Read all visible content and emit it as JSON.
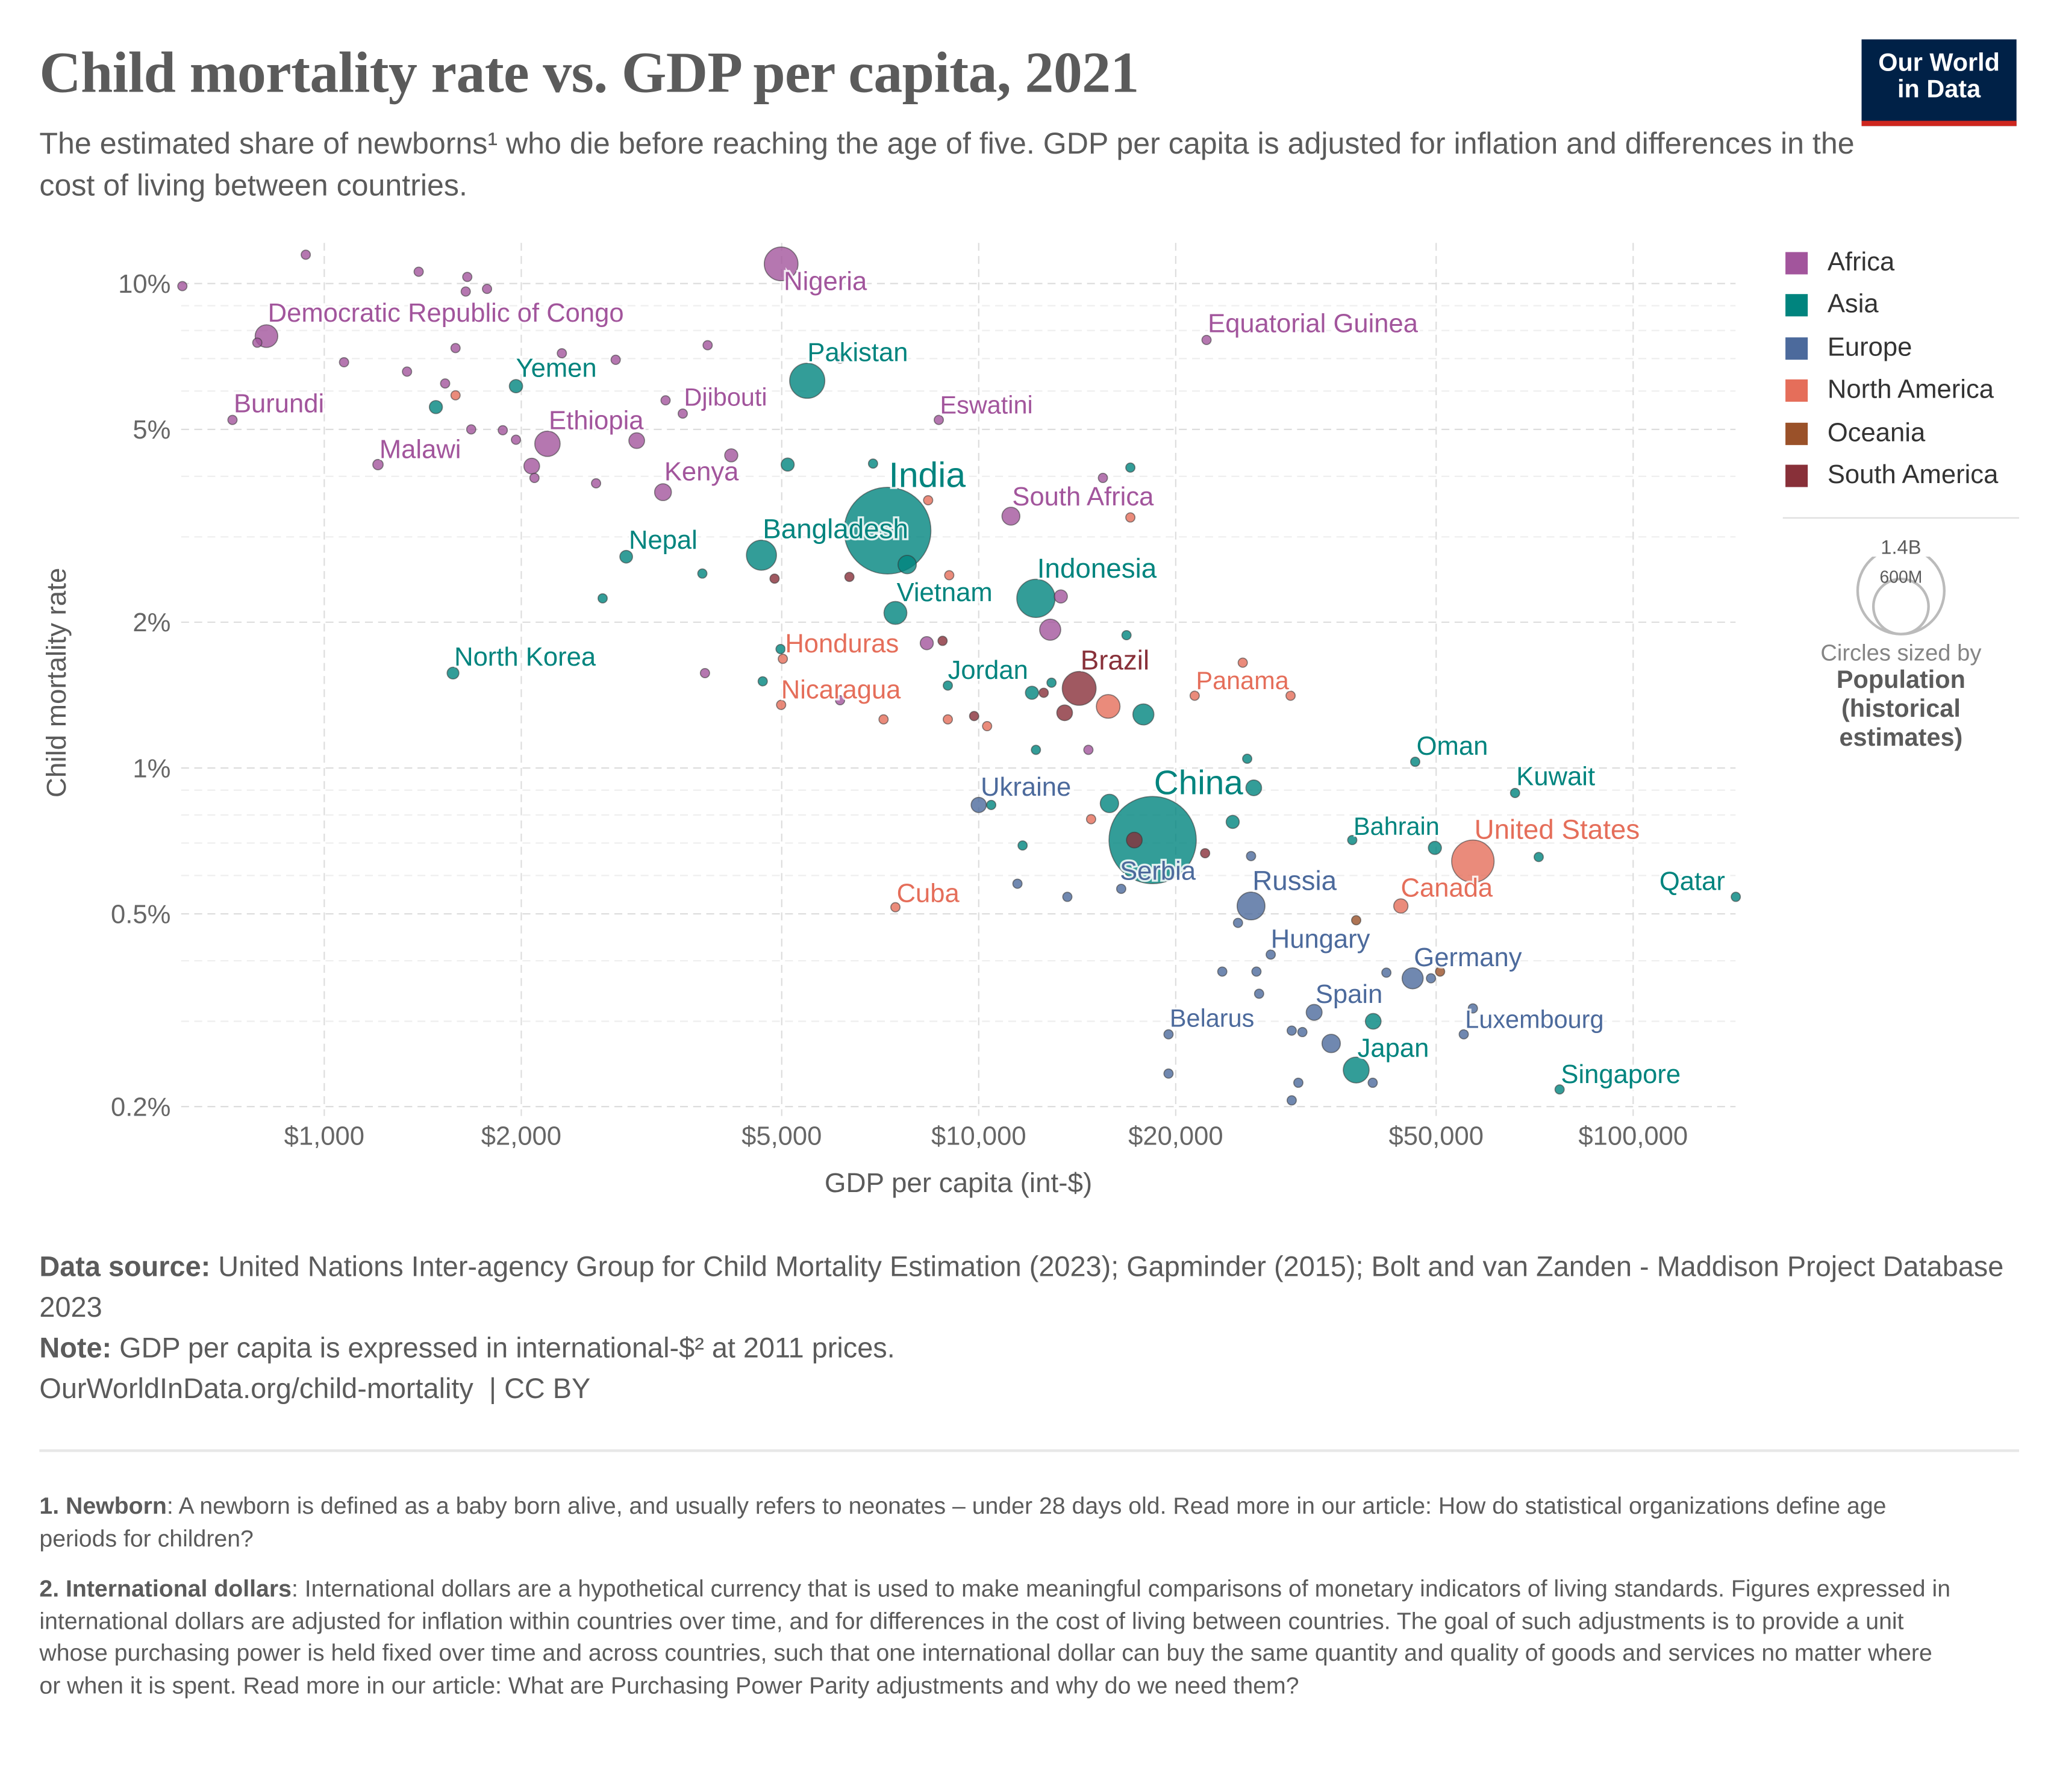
{
  "header": {
    "title": "Child mortality rate vs. GDP per capita, 2021",
    "subtitle": "The estimated share of newborns¹ who die before reaching the age of five. GDP per capita is adjusted for inflation and differences in the cost of living between countries.",
    "logo_line1": "Our World",
    "logo_line2": "in Data"
  },
  "legend": {
    "regions": [
      {
        "name": "Africa",
        "color": "#a2559c"
      },
      {
        "name": "Asia",
        "color": "#00847e"
      },
      {
        "name": "Europe",
        "color": "#4c6a9c"
      },
      {
        "name": "North America",
        "color": "#e56e5a"
      },
      {
        "name": "Oceania",
        "color": "#9a5129"
      },
      {
        "name": "South America",
        "color": "#883039"
      }
    ],
    "size_large": "1.4B",
    "size_small": "600M",
    "size_note": "Circles sized by",
    "size_var": "Population (historical estimates)"
  },
  "chart_data": {
    "type": "scatter",
    "xlabel": "GDP per capita (int-$)",
    "ylabel": "Child mortality rate",
    "x_scale": "log",
    "y_scale": "log",
    "xlim": [
      600,
      143000
    ],
    "ylim": [
      0.19,
      12.5
    ],
    "grid": true,
    "legend_placement": "right",
    "x_ticks": [
      {
        "v": 1000,
        "label": "$1,000"
      },
      {
        "v": 2000,
        "label": "$2,000"
      },
      {
        "v": 5000,
        "label": "$5,000"
      },
      {
        "v": 10000,
        "label": "$10,000"
      },
      {
        "v": 20000,
        "label": "$20,000"
      },
      {
        "v": 50000,
        "label": "$50,000"
      },
      {
        "v": 100000,
        "label": "$100,000"
      }
    ],
    "y_ticks": [
      {
        "v": 10,
        "label": "10%"
      },
      {
        "v": 5,
        "label": "5%"
      },
      {
        "v": 2,
        "label": "2%"
      },
      {
        "v": 1,
        "label": "1%"
      },
      {
        "v": 0.5,
        "label": "0.5%"
      },
      {
        "v": 0.2,
        "label": "0.2%"
      }
    ],
    "size_variable": "population_millions",
    "points": [
      {
        "label": "Nigeria",
        "gdp": 4990,
        "rate": 10.98,
        "region": "Africa",
        "pop": 213
      },
      {
        "label": "Democratic Republic of Congo",
        "gdp": 816,
        "rate": 7.79,
        "region": "Africa",
        "pop": 96
      },
      {
        "label": "Pakistan",
        "gdp": 5470,
        "rate": 6.3,
        "region": "Asia",
        "pop": 231
      },
      {
        "label": "Yemen",
        "gdp": 1963,
        "rate": 6.14,
        "region": "Asia",
        "pop": 33
      },
      {
        "label": "Burundi",
        "gdp": 724,
        "rate": 5.23,
        "region": "Africa",
        "pop": 12
      },
      {
        "label": "Djibouti",
        "gdp": 3530,
        "rate": 5.39,
        "region": "Africa",
        "pop": 1
      },
      {
        "label": "Eswatini",
        "gdp": 8690,
        "rate": 5.23,
        "region": "Africa",
        "pop": 1.2
      },
      {
        "label": "Ethiopia",
        "gdp": 2193,
        "rate": 4.67,
        "region": "Africa",
        "pop": 120
      },
      {
        "label": "Malawi",
        "gdp": 1208,
        "rate": 4.23,
        "region": "Africa",
        "pop": 20
      },
      {
        "label": "Kenya",
        "gdp": 3293,
        "rate": 3.71,
        "region": "Africa",
        "pop": 53
      },
      {
        "label": "India",
        "gdp": 7256,
        "rate": 3.09,
        "region": "Asia",
        "pop": 1408
      },
      {
        "label": "South Africa",
        "gdp": 11200,
        "rate": 3.31,
        "region": "Africa",
        "pop": 60
      },
      {
        "label": "Bangladesh",
        "gdp": 4656,
        "rate": 2.75,
        "region": "Asia",
        "pop": 169
      },
      {
        "label": "Nepal",
        "gdp": 2893,
        "rate": 2.73,
        "region": "Asia",
        "pop": 30
      },
      {
        "label": "Indonesia",
        "gdp": 12230,
        "rate": 2.24,
        "region": "Asia",
        "pop": 274
      },
      {
        "label": "Vietnam",
        "gdp": 7460,
        "rate": 2.09,
        "region": "Asia",
        "pop": 98
      },
      {
        "label": "Honduras",
        "gdp": 5020,
        "rate": 1.68,
        "region": "North America",
        "pop": 10
      },
      {
        "label": "North Korea",
        "gdp": 1573,
        "rate": 1.57,
        "region": "Asia",
        "pop": 26
      },
      {
        "label": "Jordan",
        "gdp": 8970,
        "rate": 1.48,
        "region": "Asia",
        "pop": 11
      },
      {
        "label": "Nicaragua",
        "gdp": 4990,
        "rate": 1.35,
        "region": "North America",
        "pop": 7
      },
      {
        "label": "Brazil",
        "gdp": 14240,
        "rate": 1.46,
        "region": "South America",
        "pop": 214
      },
      {
        "label": "Panama",
        "gdp": 21380,
        "rate": 1.41,
        "region": "North America",
        "pop": 4
      },
      {
        "label": "Oman",
        "gdp": 46450,
        "rate": 1.03,
        "region": "Asia",
        "pop": 4.5
      },
      {
        "label": "Kuwait",
        "gdp": 66000,
        "rate": 0.888,
        "region": "Asia",
        "pop": 4.3
      },
      {
        "label": "Ukraine",
        "gdp": 10000,
        "rate": 0.839,
        "region": "Europe",
        "pop": 43
      },
      {
        "label": "China",
        "gdp": 18440,
        "rate": 0.71,
        "region": "Asia",
        "pop": 1426
      },
      {
        "label": "Bahrain",
        "gdp": 37220,
        "rate": 0.71,
        "region": "Asia",
        "pop": 1.5
      },
      {
        "label": "United States",
        "gdp": 56900,
        "rate": 0.642,
        "region": "North America",
        "pop": 337
      },
      {
        "label": "Serbia",
        "gdp": 16510,
        "rate": 0.563,
        "region": "Europe",
        "pop": 7
      },
      {
        "label": "Qatar",
        "gdp": 143500,
        "rate": 0.542,
        "region": "Asia",
        "pop": 2.7
      },
      {
        "label": "Cuba",
        "gdp": 7460,
        "rate": 0.516,
        "region": "North America",
        "pop": 11
      },
      {
        "label": "Russia",
        "gdp": 26070,
        "rate": 0.519,
        "region": "Europe",
        "pop": 145
      },
      {
        "label": "Canada",
        "gdp": 44160,
        "rate": 0.519,
        "region": "North America",
        "pop": 38
      },
      {
        "label": "Hungary",
        "gdp": 27940,
        "rate": 0.412,
        "region": "Europe",
        "pop": 9.7
      },
      {
        "label": "Germany",
        "gdp": 46030,
        "rate": 0.368,
        "region": "Europe",
        "pop": 83
      },
      {
        "label": "Spain",
        "gdp": 32550,
        "rate": 0.313,
        "region": "Europe",
        "pop": 47
      },
      {
        "label": "Luxembourg",
        "gdp": 55100,
        "rate": 0.282,
        "region": "Europe",
        "pop": 0.6
      },
      {
        "label": "Belarus",
        "gdp": 19500,
        "rate": 0.282,
        "region": "Europe",
        "pop": 9.5
      },
      {
        "label": "Japan",
        "gdp": 37740,
        "rate": 0.238,
        "region": "Asia",
        "pop": 125
      },
      {
        "label": "Singapore",
        "gdp": 77200,
        "rate": 0.217,
        "region": "Asia",
        "pop": 5.9
      },
      {
        "label": "Equatorial Guinea",
        "gdp": 22290,
        "rate": 7.65,
        "region": "Africa",
        "pop": 1.6
      },
      {
        "gdp": 607,
        "rate": 9.88,
        "region": "Africa",
        "pop": 5
      },
      {
        "gdp": 937,
        "rate": 11.47,
        "region": "Africa",
        "pop": 5
      },
      {
        "gdp": 1394,
        "rate": 10.58,
        "region": "Africa",
        "pop": 5
      },
      {
        "gdp": 1654,
        "rate": 10.32,
        "region": "Africa",
        "pop": 5
      },
      {
        "gdp": 1645,
        "rate": 9.63,
        "region": "Africa",
        "pop": 5
      },
      {
        "gdp": 1773,
        "rate": 9.75,
        "region": "Africa",
        "pop": 5
      },
      {
        "gdp": 790,
        "rate": 7.55,
        "region": "Africa",
        "pop": 5
      },
      {
        "gdp": 1072,
        "rate": 6.88,
        "region": "Africa",
        "pop": 16
      },
      {
        "gdp": 1338,
        "rate": 6.58,
        "region": "Africa",
        "pop": 16
      },
      {
        "gdp": 1587,
        "rate": 7.36,
        "region": "Africa",
        "pop": 5
      },
      {
        "gdp": 2307,
        "rate": 7.18,
        "region": "Africa",
        "pop": 5
      },
      {
        "gdp": 2788,
        "rate": 6.96,
        "region": "Africa",
        "pop": 16
      },
      {
        "gdp": 3853,
        "rate": 7.46,
        "region": "Africa",
        "pop": 16
      },
      {
        "gdp": 1530,
        "rate": 6.22,
        "region": "Africa",
        "pop": 5
      },
      {
        "gdp": 3323,
        "rate": 5.74,
        "region": "Africa",
        "pop": 5
      },
      {
        "gdp": 6140,
        "rate": 7.0,
        "region": "Africa",
        "pop": 5
      },
      {
        "gdp": 1677,
        "rate": 5.0,
        "region": "Africa",
        "pop": 5
      },
      {
        "gdp": 1874,
        "rate": 4.98,
        "region": "Africa",
        "pop": 5
      },
      {
        "gdp": 1963,
        "rate": 4.76,
        "region": "Africa",
        "pop": 5
      },
      {
        "gdp": 3002,
        "rate": 4.74,
        "region": "Africa",
        "pop": 46
      },
      {
        "gdp": 4187,
        "rate": 4.42,
        "region": "Africa",
        "pop": 32
      },
      {
        "gdp": 2075,
        "rate": 4.2,
        "region": "Africa",
        "pop": 46
      },
      {
        "gdp": 2095,
        "rate": 3.97,
        "region": "Africa",
        "pop": 16
      },
      {
        "gdp": 2602,
        "rate": 3.87,
        "region": "Africa",
        "pop": 5
      },
      {
        "gdp": 15480,
        "rate": 3.97,
        "region": "Africa",
        "pop": 5
      },
      {
        "gdp": 13350,
        "rate": 2.26,
        "region": "Africa",
        "pop": 32
      },
      {
        "gdp": 12860,
        "rate": 1.93,
        "region": "Africa",
        "pop": 83
      },
      {
        "gdp": 8330,
        "rate": 1.81,
        "region": "Africa",
        "pop": 32
      },
      {
        "gdp": 3817,
        "rate": 1.57,
        "region": "Africa",
        "pop": 5
      },
      {
        "gdp": 6140,
        "rate": 1.38,
        "region": "Africa",
        "pop": 5
      },
      {
        "gdp": 14710,
        "rate": 1.09,
        "region": "Africa",
        "pop": 5
      },
      {
        "gdp": 1481,
        "rate": 5.56,
        "region": "Asia",
        "pop": 32
      },
      {
        "gdp": 5106,
        "rate": 4.23,
        "region": "Asia",
        "pop": 32
      },
      {
        "gdp": 6895,
        "rate": 4.25,
        "region": "Asia",
        "pop": 5
      },
      {
        "gdp": 17050,
        "rate": 4.17,
        "region": "Asia",
        "pop": 5
      },
      {
        "gdp": 7775,
        "rate": 2.63,
        "region": "Asia",
        "pop": 63
      },
      {
        "gdp": 3782,
        "rate": 2.52,
        "region": "Asia",
        "pop": 5
      },
      {
        "gdp": 2663,
        "rate": 2.24,
        "region": "Asia",
        "pop": 5
      },
      {
        "gdp": 4980,
        "rate": 1.76,
        "region": "Asia",
        "pop": 5
      },
      {
        "gdp": 4677,
        "rate": 1.51,
        "region": "Asia",
        "pop": 5
      },
      {
        "gdp": 16820,
        "rate": 1.88,
        "region": "Asia",
        "pop": 5
      },
      {
        "gdp": 12920,
        "rate": 1.5,
        "region": "Asia",
        "pop": 5
      },
      {
        "gdp": 12060,
        "rate": 1.43,
        "region": "Asia",
        "pop": 32
      },
      {
        "gdp": 17850,
        "rate": 1.29,
        "region": "Asia",
        "pop": 83
      },
      {
        "gdp": 12230,
        "rate": 1.09,
        "region": "Asia",
        "pop": 5
      },
      {
        "gdp": 25720,
        "rate": 1.045,
        "region": "Asia",
        "pop": 5
      },
      {
        "gdp": 26320,
        "rate": 0.91,
        "region": "Asia",
        "pop": 46
      },
      {
        "gdp": 15840,
        "rate": 0.845,
        "region": "Asia",
        "pop": 63
      },
      {
        "gdp": 10450,
        "rate": 0.839,
        "region": "Asia",
        "pop": 5
      },
      {
        "gdp": 24440,
        "rate": 0.774,
        "region": "Asia",
        "pop": 32
      },
      {
        "gdp": 11670,
        "rate": 0.692,
        "region": "Asia",
        "pop": 5
      },
      {
        "gdp": 49780,
        "rate": 0.684,
        "region": "Asia",
        "pop": 32
      },
      {
        "gdp": 71730,
        "rate": 0.655,
        "region": "Asia",
        "pop": 5
      },
      {
        "gdp": 40070,
        "rate": 0.3,
        "region": "Asia",
        "pop": 46
      },
      {
        "gdp": 11460,
        "rate": 0.577,
        "region": "Europe",
        "pop": 5
      },
      {
        "gdp": 13660,
        "rate": 0.542,
        "region": "Europe",
        "pop": 5
      },
      {
        "gdp": 26070,
        "rate": 0.658,
        "region": "Europe",
        "pop": 5
      },
      {
        "gdp": 24900,
        "rate": 0.479,
        "region": "Europe",
        "pop": 5
      },
      {
        "gdp": 23560,
        "rate": 0.38,
        "region": "Europe",
        "pop": 5
      },
      {
        "gdp": 26570,
        "rate": 0.38,
        "region": "Europe",
        "pop": 5
      },
      {
        "gdp": 41970,
        "rate": 0.378,
        "region": "Europe",
        "pop": 5
      },
      {
        "gdp": 49100,
        "rate": 0.368,
        "region": "Europe",
        "pop": 5
      },
      {
        "gdp": 26820,
        "rate": 0.342,
        "region": "Europe",
        "pop": 5
      },
      {
        "gdp": 30080,
        "rate": 0.287,
        "region": "Europe",
        "pop": 5
      },
      {
        "gdp": 31230,
        "rate": 0.285,
        "region": "Europe",
        "pop": 5
      },
      {
        "gdp": 34560,
        "rate": 0.27,
        "region": "Europe",
        "pop": 63
      },
      {
        "gdp": 56900,
        "rate": 0.319,
        "region": "Europe",
        "pop": 5
      },
      {
        "gdp": 19500,
        "rate": 0.234,
        "region": "Europe",
        "pop": 5
      },
      {
        "gdp": 30790,
        "rate": 0.224,
        "region": "Europe",
        "pop": 5
      },
      {
        "gdp": 30080,
        "rate": 0.206,
        "region": "Europe",
        "pop": 5
      },
      {
        "gdp": 40000,
        "rate": 0.224,
        "region": "Europe",
        "pop": 5
      },
      {
        "gdp": 1587,
        "rate": 5.88,
        "region": "North America",
        "pop": 5
      },
      {
        "gdp": 8370,
        "rate": 3.57,
        "region": "North America",
        "pop": 5
      },
      {
        "gdp": 9015,
        "rate": 2.5,
        "region": "North America",
        "pop": 5
      },
      {
        "gdp": 17050,
        "rate": 3.29,
        "region": "North America",
        "pop": 5
      },
      {
        "gdp": 25320,
        "rate": 1.65,
        "region": "North America",
        "pop": 5
      },
      {
        "gdp": 29960,
        "rate": 1.41,
        "region": "North America",
        "pop": 5
      },
      {
        "gdp": 7155,
        "rate": 1.26,
        "region": "North America",
        "pop": 5
      },
      {
        "gdp": 8970,
        "rate": 1.26,
        "region": "North America",
        "pop": 5
      },
      {
        "gdp": 10300,
        "rate": 1.22,
        "region": "North America",
        "pop": 5
      },
      {
        "gdp": 15770,
        "rate": 1.34,
        "region": "North America",
        "pop": 105
      },
      {
        "gdp": 14850,
        "rate": 0.784,
        "region": "North America",
        "pop": 5
      },
      {
        "gdp": 37740,
        "rate": 0.485,
        "region": "Oceania",
        "pop": 5
      },
      {
        "gdp": 50700,
        "rate": 0.38,
        "region": "Oceania",
        "pop": 5
      },
      {
        "gdp": 4876,
        "rate": 2.46,
        "region": "South America",
        "pop": 5
      },
      {
        "gdp": 6345,
        "rate": 2.48,
        "region": "South America",
        "pop": 5
      },
      {
        "gdp": 8806,
        "rate": 1.83,
        "region": "South America",
        "pop": 5
      },
      {
        "gdp": 12570,
        "rate": 1.43,
        "region": "South America",
        "pop": 5
      },
      {
        "gdp": 13530,
        "rate": 1.3,
        "region": "South America",
        "pop": 46
      },
      {
        "gdp": 9840,
        "rate": 1.28,
        "region": "South America",
        "pop": 5
      },
      {
        "gdp": 17290,
        "rate": 0.71,
        "region": "South America",
        "pop": 46
      },
      {
        "gdp": 22180,
        "rate": 0.667,
        "region": "South America",
        "pop": 5
      }
    ]
  },
  "footer": {
    "source_label": "Data source:",
    "source_text": " United Nations Inter-agency Group for Child Mortality Estimation (2023); Gapminder (2015); Bolt and van Zanden - Maddison Project Database 2023",
    "note_label": "Note:",
    "note_text": " GDP per capita is expressed in international-$² at 2011 prices.",
    "url": "OurWorldInData.org/child-mortality  | CC BY"
  },
  "notes": [
    {
      "label": "1. Newborn",
      "text": ": A newborn is defined as a baby born alive, and usually refers to neonates – under 28 days old. Read more in our article: How do statistical organizations define age periods for children?"
    },
    {
      "label": "2. International dollars",
      "text": ": International dollars are a hypothetical currency that is used to make meaningful comparisons of monetary indicators of living standards. Figures expressed in international dollars are adjusted for inflation within countries over time, and for differences in the cost of living between countries. The goal of such adjustments is to provide a unit whose purchasing power is held fixed over time and across countries, such that one international dollar can buy the same quantity and quality of goods and services no matter where or when it is spent. Read more in our article: What are Purchasing Power Parity adjustments and why do we need them?"
    }
  ]
}
